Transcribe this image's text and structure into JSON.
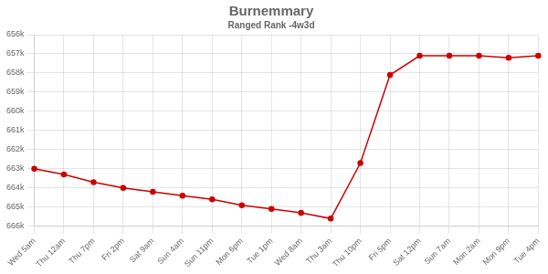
{
  "chart_data": {
    "type": "line",
    "title": "Burnemmary",
    "subtitle": "Ranged Rank -4w3d",
    "categories": [
      "Wed 5am",
      "Thu 12am",
      "Thu 7pm",
      "Fri 2pm",
      "Sat 9am",
      "Sun 4am",
      "Sun 11pm",
      "Mon 6pm",
      "Tue 1pm",
      "Wed 8am",
      "Thu 3am",
      "Thu 10pm",
      "Fri 5pm",
      "Sat 12pm",
      "Sun 7am",
      "Mon 2am",
      "Mon 9pm",
      "Tue 4pm"
    ],
    "values": [
      663000,
      663300,
      663700,
      664000,
      664200,
      664400,
      664600,
      664900,
      665100,
      665300,
      665600,
      662700,
      658100,
      657100,
      657100,
      657100,
      657200,
      657100
    ],
    "color": "#cc0000",
    "marker": "circle",
    "ylim": [
      666000,
      656000
    ],
    "yticks": [
      {
        "value": 656000,
        "label": "656k"
      },
      {
        "value": 657000,
        "label": "657k"
      },
      {
        "value": 658000,
        "label": "658k"
      },
      {
        "value": 659000,
        "label": "659k"
      },
      {
        "value": 660000,
        "label": "660k"
      },
      {
        "value": 661000,
        "label": "661k"
      },
      {
        "value": 662000,
        "label": "662k"
      },
      {
        "value": 663000,
        "label": "663k"
      },
      {
        "value": 664000,
        "label": "664k"
      },
      {
        "value": 665000,
        "label": "665k"
      },
      {
        "value": 666000,
        "label": "666k"
      }
    ],
    "grid": true
  }
}
